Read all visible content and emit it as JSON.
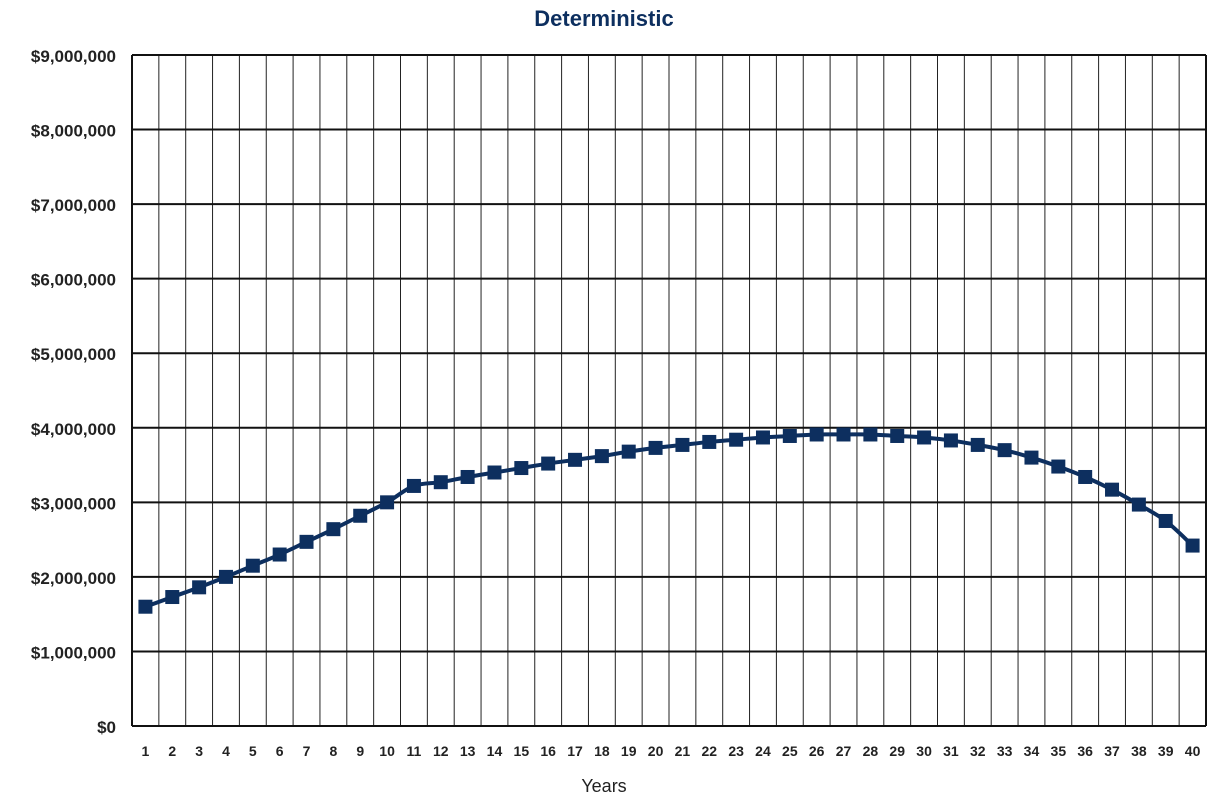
{
  "chart_data": {
    "type": "line",
    "title": "Deterministic",
    "xlabel": "Years",
    "ylabel": "",
    "ylim": [
      0,
      9000000
    ],
    "yticks": [
      0,
      1000000,
      2000000,
      3000000,
      4000000,
      5000000,
      6000000,
      7000000,
      8000000,
      9000000
    ],
    "ytick_labels": [
      "$0",
      "$1,000,000",
      "$2,000,000",
      "$3,000,000",
      "$4,000,000",
      "$5,000,000",
      "$6,000,000",
      "$7,000,000",
      "$8,000,000",
      "$9,000,000"
    ],
    "x": [
      1,
      2,
      3,
      4,
      5,
      6,
      7,
      8,
      9,
      10,
      11,
      12,
      13,
      14,
      15,
      16,
      17,
      18,
      19,
      20,
      21,
      22,
      23,
      24,
      25,
      26,
      27,
      28,
      29,
      30,
      31,
      32,
      33,
      34,
      35,
      36,
      37,
      38,
      39,
      40
    ],
    "series": [
      {
        "values": [
          1600000,
          1730000,
          1860000,
          2000000,
          2150000,
          2300000,
          2470000,
          2640000,
          2820000,
          3000000,
          3220000,
          3270000,
          3340000,
          3400000,
          3460000,
          3520000,
          3570000,
          3620000,
          3680000,
          3730000,
          3770000,
          3810000,
          3840000,
          3870000,
          3890000,
          3910000,
          3910000,
          3910000,
          3890000,
          3870000,
          3830000,
          3770000,
          3700000,
          3600000,
          3480000,
          3340000,
          3170000,
          2970000,
          2750000,
          2420000
        ],
        "color": "#0d2f5f"
      }
    ],
    "grid": true,
    "legend": "none"
  }
}
